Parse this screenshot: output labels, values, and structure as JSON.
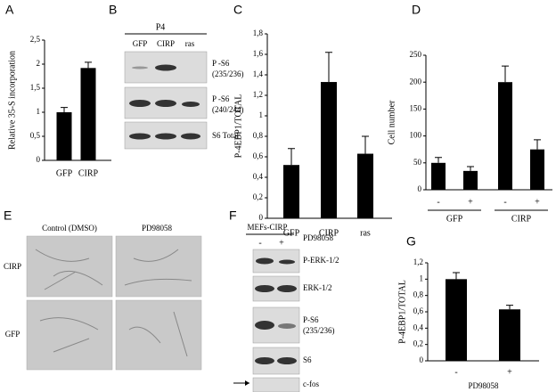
{
  "chart_data": [
    {
      "type": "bar",
      "label": "A",
      "ylabel": "Relative 35-S incorporation",
      "categories": [
        "GFP",
        "CIRP"
      ],
      "values": [
        1.0,
        1.92
      ],
      "errors": [
        0.1,
        0.12
      ],
      "color": "#000000",
      "ylim": [
        0,
        2.5
      ],
      "yticks": [
        0,
        {
          "value": 0.5,
          "label": "0,5"
        },
        1,
        {
          "value": 1.5,
          "label": "1,5"
        },
        2,
        {
          "value": 2.5,
          "label": "2,5"
        }
      ]
    },
    {
      "type": "bar",
      "label": "C",
      "ylabel": "P-4EBP1/TOTAL",
      "categories": [
        "GFP",
        "CIRP",
        "ras"
      ],
      "values": [
        0.52,
        1.33,
        0.63
      ],
      "errors": [
        0.16,
        0.29,
        0.17
      ],
      "color": "#000000",
      "ylim": [
        0,
        1.8
      ],
      "yticks": [
        0,
        {
          "value": 0.2,
          "label": "0,2"
        },
        {
          "value": 0.4,
          "label": "0,4"
        },
        {
          "value": 0.6,
          "label": "0,6"
        },
        {
          "value": 0.8,
          "label": "0,8"
        },
        1,
        {
          "value": 1.2,
          "label": "1,2"
        },
        {
          "value": 1.4,
          "label": "1,4"
        },
        {
          "value": 1.6,
          "label": "1,6"
        },
        {
          "value": 1.8,
          "label": "1,8"
        }
      ]
    },
    {
      "type": "bar",
      "label": "D",
      "ylabel": "Cell number",
      "categories": [
        "-",
        "+",
        "-",
        "+"
      ],
      "groups": [
        "GFP",
        "CIRP"
      ],
      "values": [
        50,
        35,
        200,
        75
      ],
      "errors": [
        10,
        8,
        30,
        18
      ],
      "color": "#000000",
      "ylim": [
        0,
        250
      ],
      "yticks": [
        0,
        50,
        100,
        150,
        200,
        250
      ]
    },
    {
      "type": "bar",
      "label": "G",
      "ylabel": "P-4EBP1/TOTAL",
      "xlabel": "PD98058",
      "categories": [
        "-",
        "+"
      ],
      "values": [
        1.0,
        0.63
      ],
      "errors": [
        0.08,
        0.05
      ],
      "color": "#000000",
      "ylim": [
        0,
        1.2
      ],
      "yticks": [
        0,
        {
          "value": 0.2,
          "label": "0,2"
        },
        {
          "value": 0.4,
          "label": "0,4"
        },
        {
          "value": 0.6,
          "label": "0,6"
        },
        {
          "value": 0.8,
          "label": "0,8"
        },
        1,
        {
          "value": 1.2,
          "label": "1,2"
        }
      ]
    }
  ],
  "blot_panels": [
    {
      "label": "B",
      "header": "P4",
      "lanes": [
        "GFP",
        "CIRP",
        "ras"
      ],
      "rows": [
        [
          "P -S6",
          "(235/236)"
        ],
        [
          "P -S6",
          "(240/244)"
        ],
        [
          "S6 Total"
        ]
      ]
    },
    {
      "label": "F",
      "header": "MEFs-CIRP",
      "lanes": [
        "-",
        "+"
      ],
      "treatment": "PD98058",
      "rows": [
        [
          "P-ERK-1/2"
        ],
        [
          "ERK-1/2"
        ],
        [
          "P-S6",
          "(235/236)"
        ],
        [
          "S6"
        ],
        [
          "c-fos"
        ]
      ]
    }
  ],
  "micrograph_panel": {
    "label": "E",
    "columns": [
      "Control (DMSO)",
      "PD98058"
    ],
    "rows": [
      "CIRP",
      "GFP"
    ]
  }
}
